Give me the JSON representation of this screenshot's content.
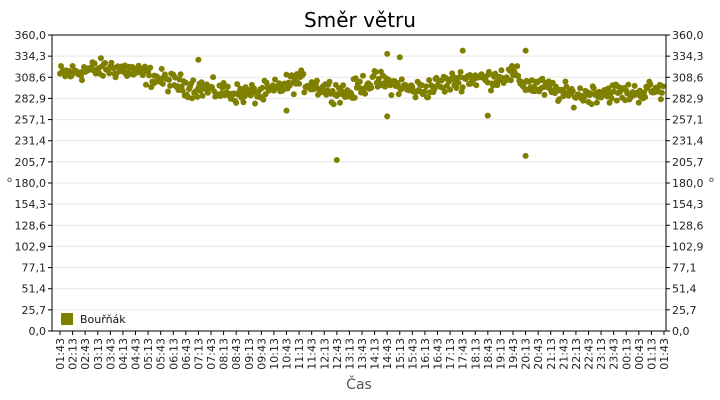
{
  "chart_data": {
    "type": "scatter",
    "title": "Směr větru",
    "xlabel": "Čas",
    "ylabel": "°",
    "ylim": [
      0,
      360
    ],
    "y_ticks": [
      "0,0",
      "25,7",
      "51,4",
      "77,1",
      "102,9",
      "128,6",
      "154,3",
      "180,0",
      "205,7",
      "231,4",
      "257,1",
      "282,9",
      "308,6",
      "334,3",
      "360,0"
    ],
    "x_ticks": [
      "01:43",
      "02:13",
      "02:43",
      "03:13",
      "03:43",
      "04:13",
      "04:43",
      "05:13",
      "05:43",
      "06:13",
      "06:43",
      "07:13",
      "07:43",
      "08:13",
      "08:43",
      "09:13",
      "09:43",
      "10:13",
      "10:43",
      "11:13",
      "11:43",
      "12:13",
      "12:43",
      "13:13",
      "13:43",
      "14:13",
      "14:43",
      "15:13",
      "15:43",
      "16:13",
      "16:43",
      "17:13",
      "17:43",
      "18:13",
      "18:43",
      "19:13",
      "19:43",
      "20:13",
      "20:43",
      "21:13",
      "21:43",
      "22:13",
      "22:43",
      "23:13",
      "23:43",
      "00:13",
      "00:43",
      "01:13",
      "01:43"
    ],
    "grid": true,
    "legend_position": "bottom-left",
    "series": [
      {
        "name": "Bouřňák",
        "color": "#808000",
        "x": [
          "01:43",
          "02:13",
          "02:43",
          "03:13",
          "03:43",
          "04:13",
          "04:43",
          "05:13",
          "05:43",
          "06:13",
          "06:43",
          "07:13",
          "07:43",
          "08:13",
          "08:43",
          "09:13",
          "09:43",
          "10:13",
          "10:43",
          "11:13",
          "11:43",
          "12:13",
          "12:43",
          "13:13",
          "13:43",
          "14:13",
          "14:43",
          "15:13",
          "15:43",
          "16:13",
          "16:43",
          "17:13",
          "17:43",
          "18:13",
          "18:43",
          "19:13",
          "19:43",
          "20:13",
          "20:43",
          "21:13",
          "21:43",
          "22:13",
          "22:43",
          "23:13",
          "23:43",
          "00:13",
          "00:43",
          "01:13",
          "01:43"
        ],
        "values": [
          312,
          314,
          317,
          318,
          320,
          318,
          315,
          310,
          306,
          302,
          298,
          296,
          293,
          291,
          289,
          288,
          289,
          293,
          300,
          304,
          300,
          295,
          292,
          289,
          300,
          304,
          302,
          298,
          293,
          294,
          299,
          302,
          307,
          308,
          306,
          310,
          312,
          300,
          297,
          293,
          289,
          287,
          288,
          291,
          290,
          289,
          290,
          293,
          293
        ],
        "outliers": [
          {
            "x": "12:43",
            "y": 208
          },
          {
            "x": "20:13",
            "y": 213
          },
          {
            "x": "18:43",
            "y": 262
          },
          {
            "x": "14:43",
            "y": 261
          },
          {
            "x": "10:43",
            "y": 268
          },
          {
            "x": "17:43",
            "y": 341
          },
          {
            "x": "20:13",
            "y": 341
          },
          {
            "x": "14:43",
            "y": 337
          },
          {
            "x": "15:13",
            "y": 333
          },
          {
            "x": "07:13",
            "y": 330
          }
        ]
      }
    ]
  }
}
